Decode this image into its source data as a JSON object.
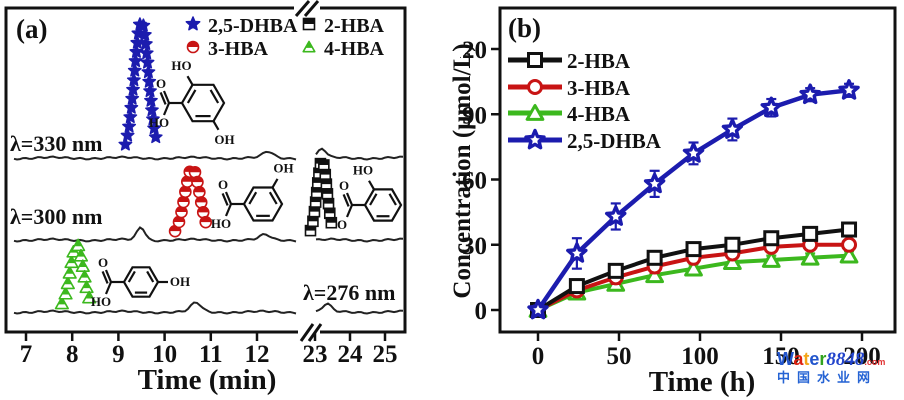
{
  "panels": {
    "a_tag": "(a)",
    "b_tag": "(b)"
  },
  "colors": {
    "blue": "#1c1cae",
    "red": "#c81414",
    "green": "#3cb81e",
    "black": "#111111",
    "trace": "#222222"
  },
  "chart_data": [
    {
      "id": "a",
      "type": "line",
      "description": "HPLC chromatograms of hydroxybenzoic acids detected at three wavelengths",
      "xlabel": "Time (min)",
      "x_ticks": [
        7,
        8,
        9,
        10,
        11,
        12,
        23,
        24,
        25
      ],
      "x_axis_break": [
        12.6,
        22.8
      ],
      "trace_labels": [
        "λ=330 nm",
        "λ=300 nm",
        "λ=276 nm"
      ],
      "legend_grid": [
        [
          "2,5-DHBA",
          "2-HBA"
        ],
        [
          "3-HBA",
          "4-HBA"
        ]
      ],
      "series": [
        {
          "name": "2,5-DHBA",
          "marker": "star",
          "color": "#1c1cae",
          "trace": 0,
          "wavelength_nm": 330,
          "retention_min": 9.5,
          "peak_height_rel": 133
        },
        {
          "name": "3-HBA",
          "marker": "circle",
          "color": "#c81414",
          "trace": 1,
          "wavelength_nm": 300,
          "retention_min": 10.6,
          "peak_height_rel": 68
        },
        {
          "name": "2-HBA",
          "marker": "square",
          "color": "#111111",
          "trace": 1,
          "wavelength_nm": 300,
          "retention_min": 23.2,
          "peak_height_rel": 76
        },
        {
          "name": "4-HBA",
          "marker": "triangle",
          "color": "#3cb81e",
          "trace": 2,
          "wavelength_nm": 276,
          "retention_min": 8.1,
          "peak_height_rel": 64
        }
      ],
      "structure_annotations": [
        "2,5-DHBA",
        "3-HBA",
        "2-HBA",
        "4-HBA"
      ]
    },
    {
      "id": "b",
      "type": "line",
      "xlabel": "Time (h)",
      "ylabel": "Concentration (μmol/L)",
      "x": [
        0,
        24,
        48,
        72,
        96,
        120,
        144,
        168,
        192
      ],
      "x_ticks": [
        0,
        50,
        100,
        150,
        200
      ],
      "y_ticks": [
        0,
        30,
        60,
        90,
        120
      ],
      "xlim": [
        -12,
        220
      ],
      "ylim": [
        -10,
        135
      ],
      "grid": false,
      "legend_position": "top-left",
      "series": [
        {
          "name": "2-HBA",
          "marker": "square",
          "color": "#111111",
          "values": [
            0,
            11,
            18,
            24,
            28,
            30,
            33,
            35,
            37
          ],
          "yerr": [
            1,
            3,
            3,
            3,
            2,
            2,
            2,
            2,
            3
          ]
        },
        {
          "name": "3-HBA",
          "marker": "circle",
          "color": "#c81414",
          "values": [
            0,
            9,
            15,
            20,
            24,
            26,
            29,
            30,
            30
          ],
          "yerr": [
            1,
            2,
            3,
            3,
            2,
            2,
            2,
            2,
            2
          ]
        },
        {
          "name": "4-HBA",
          "marker": "triangle",
          "color": "#3cb81e",
          "values": [
            0,
            8,
            12,
            16,
            19,
            22,
            23,
            24,
            25
          ],
          "yerr": [
            1,
            2,
            2,
            2,
            2,
            2,
            2,
            2,
            2
          ]
        },
        {
          "name": "2,5-DHBA",
          "marker": "star",
          "color": "#1c1cae",
          "values": [
            0,
            26,
            43,
            58,
            72,
            83,
            93,
            99,
            101
          ],
          "yerr": [
            2,
            7,
            6,
            6,
            5,
            5,
            4,
            3,
            3
          ]
        }
      ]
    }
  ],
  "watermark": {
    "brand_letters": [
      {
        "ch": "W",
        "color": "#2255cc"
      },
      {
        "ch": "a",
        "color": "#dd2211"
      },
      {
        "ch": "t",
        "color": "#f4a618"
      },
      {
        "ch": "e",
        "color": "#2255cc"
      },
      {
        "ch": "r",
        "color": "#31a31e"
      }
    ],
    "brand_number": "8848",
    "brand_number_color": "#2244cc",
    "brand_tld": ".com",
    "brand_tld_color": "#e03131",
    "line2": "中国水业网",
    "line2_color": "#2563d4"
  }
}
